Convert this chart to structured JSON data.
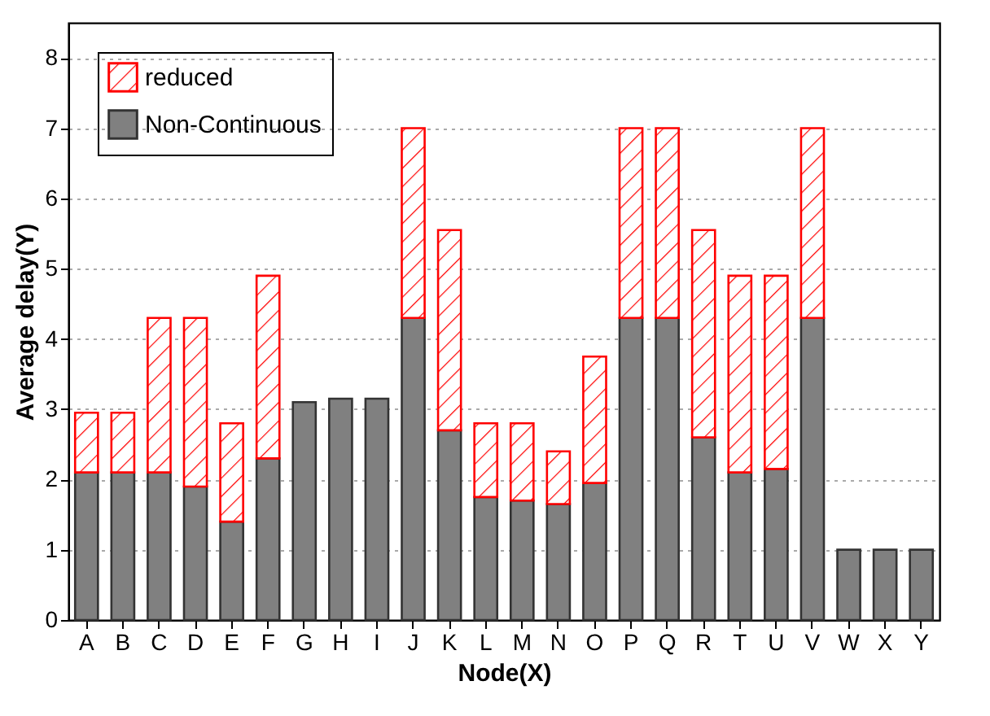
{
  "chart_data": {
    "type": "bar",
    "xlabel": "Node(X)",
    "ylabel": "Average delay(Y)",
    "categories": [
      "A",
      "B",
      "C",
      "D",
      "E",
      "F",
      "G",
      "H",
      "I",
      "J",
      "K",
      "L",
      "M",
      "N",
      "O",
      "P",
      "Q",
      "R",
      "T",
      "U",
      "V",
      "W",
      "X",
      "Y"
    ],
    "stacked": true,
    "series": [
      {
        "name": "Non-Continuous",
        "color": "#808080",
        "values": [
          2.1,
          2.1,
          2.1,
          1.9,
          1.4,
          2.3,
          3.1,
          3.15,
          3.15,
          4.3,
          2.7,
          1.75,
          1.7,
          1.65,
          1.95,
          4.3,
          4.3,
          2.6,
          2.1,
          2.15,
          4.3,
          1,
          1,
          1
        ]
      },
      {
        "name": "reduced",
        "color": "#ff0000",
        "values": [
          0.85,
          0.85,
          2.2,
          2.4,
          1.4,
          2.6,
          null,
          null,
          null,
          2.7,
          2.85,
          1.05,
          1.1,
          0.75,
          1.8,
          2.7,
          2.7,
          2.95,
          2.8,
          2.75,
          2.7,
          null,
          null,
          null
        ]
      }
    ],
    "ylim": [
      0,
      8.5
    ],
    "yticks": [
      0,
      1,
      2,
      3,
      4,
      5,
      6,
      7,
      8
    ],
    "grid": "y",
    "legend": "top left"
  }
}
